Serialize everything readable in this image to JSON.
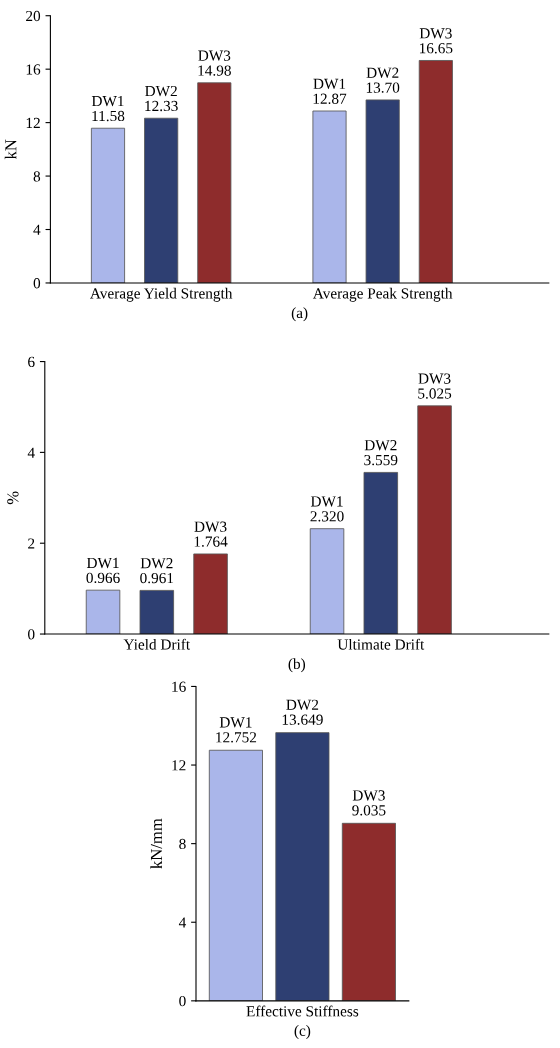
{
  "chart_data": [
    {
      "type": "bar",
      "categories": [
        "Average Yield Strength",
        "Average Peak Strength"
      ],
      "xlabel": "(a)",
      "ylabel": "kN",
      "ylim": [
        0,
        20
      ],
      "yticks": [
        0,
        4,
        8,
        12,
        16,
        20
      ],
      "grid": false,
      "legend": false,
      "series": [
        {
          "name": "DW1",
          "color": "#aab6ea",
          "values": [
            11.58,
            12.87
          ],
          "value_labels": [
            "11.58",
            "12.87"
          ]
        },
        {
          "name": "DW2",
          "color": "#2e3f72",
          "values": [
            12.33,
            13.7
          ],
          "value_labels": [
            "12.33",
            "13.70"
          ]
        },
        {
          "name": "DW3",
          "color": "#8e2c2c",
          "values": [
            14.98,
            16.65
          ],
          "value_labels": [
            "14.98",
            "16.65"
          ]
        }
      ]
    },
    {
      "type": "bar",
      "categories": [
        "Yield Drift",
        "Ultimate Drift"
      ],
      "xlabel": "(b)",
      "ylabel": "%",
      "ylim": [
        0,
        6
      ],
      "yticks": [
        0,
        2,
        4,
        6
      ],
      "grid": false,
      "legend": false,
      "series": [
        {
          "name": "DW1",
          "color": "#aab6ea",
          "values": [
            0.966,
            2.32
          ],
          "value_labels": [
            "0.966",
            "2.320"
          ]
        },
        {
          "name": "DW2",
          "color": "#2e3f72",
          "values": [
            0.961,
            3.559
          ],
          "value_labels": [
            "0.961",
            "3.559"
          ]
        },
        {
          "name": "DW3",
          "color": "#8e2c2c",
          "values": [
            1.764,
            5.025
          ],
          "value_labels": [
            "1.764",
            "5.025"
          ]
        }
      ]
    },
    {
      "type": "bar",
      "categories": [
        null,
        "Effective Stiffness",
        null
      ],
      "xlabel": "(c)",
      "ylabel": "kN/mm",
      "ylim": [
        0,
        16
      ],
      "yticks": [
        0,
        4,
        8,
        12,
        16
      ],
      "grid": false,
      "legend": false,
      "series": [
        {
          "name": "DW1",
          "color": "#aab6ea",
          "values": [
            12.752,
            null,
            null
          ],
          "value_labels": [
            "12.752",
            null,
            null
          ]
        },
        {
          "name": "DW2",
          "color": "#2e3f72",
          "values": [
            null,
            13.649,
            null
          ],
          "value_labels": [
            null,
            "13.649",
            null
          ]
        },
        {
          "name": "DW3",
          "color": "#8e2c2c",
          "values": [
            null,
            null,
            9.035
          ],
          "value_labels": [
            null,
            null,
            "9.035"
          ]
        }
      ]
    }
  ]
}
